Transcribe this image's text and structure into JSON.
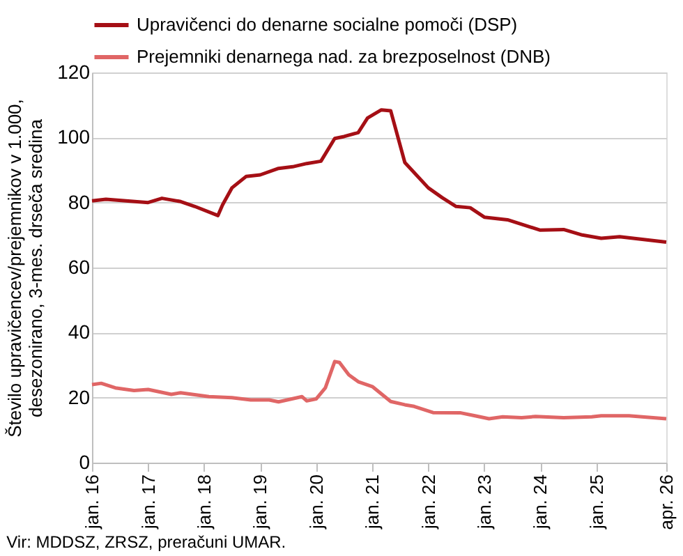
{
  "chart_data": {
    "type": "line",
    "ylabel": "Število upravičencev/prejemnikov v 1.000,\ndesezonirano, 3-mes. drseča sredina",
    "annotations": [
      "Vir: MDDSZ, ZRSZ, preračuni UMAR."
    ],
    "xlim": [
      "2016-01",
      "2026-04"
    ],
    "xticks": [
      {
        "value": "2016-01",
        "label": "jan. 16"
      },
      {
        "value": "2017-01",
        "label": "jan. 17"
      },
      {
        "value": "2018-01",
        "label": "jan. 18"
      },
      {
        "value": "2019-01",
        "label": "jan. 19"
      },
      {
        "value": "2020-01",
        "label": "jan. 20"
      },
      {
        "value": "2021-01",
        "label": "jan. 21"
      },
      {
        "value": "2022-01",
        "label": "jan. 22"
      },
      {
        "value": "2023-01",
        "label": "jan. 23"
      },
      {
        "value": "2024-01",
        "label": "jan. 24"
      },
      {
        "value": "2025-01",
        "label": "jan. 25"
      },
      {
        "value": "2026-04",
        "label": "apr. 26"
      }
    ],
    "ylim": [
      0,
      120
    ],
    "yticks": [
      0,
      20,
      40,
      60,
      80,
      100,
      120
    ],
    "grid": "y",
    "legend": "top",
    "line_style": "solid",
    "series": [
      {
        "name": "Upravičenci do denarne socialne pomoči (DSP)",
        "color": "#a50f15",
        "x": [
          "2016-01",
          "2016-04",
          "2017-01",
          "2017-04",
          "2017-08",
          "2017-11",
          "2018-04",
          "2018-05",
          "2018-07",
          "2018-10",
          "2019-01",
          "2019-05",
          "2019-08",
          "2019-11",
          "2020-02",
          "2020-05",
          "2020-07",
          "2020-10",
          "2020-12",
          "2021-03",
          "2021-05",
          "2021-08",
          "2022-01",
          "2022-04",
          "2022-07",
          "2022-10",
          "2023-01",
          "2023-06",
          "2024-01",
          "2024-06",
          "2024-10",
          "2025-02",
          "2025-06",
          "2026-04"
        ],
        "values": [
          80.5,
          81,
          80,
          81.3,
          80.3,
          78.8,
          76,
          79.3,
          84.5,
          88,
          88.5,
          90.5,
          91,
          92,
          92.7,
          99.7,
          100.3,
          101.5,
          106,
          108.5,
          108.2,
          92.3,
          84.5,
          81.5,
          78.8,
          78.4,
          75.5,
          74.7,
          71.5,
          71.7,
          70,
          69,
          69.5,
          67.8
        ]
      },
      {
        "name": "Prejemniki denarnega nad. za brezposelnost (DNB)",
        "color": "#e06666",
        "x": [
          "2016-01",
          "2016-03",
          "2016-06",
          "2016-10",
          "2017-01",
          "2017-06",
          "2017-08",
          "2018-02",
          "2018-07",
          "2018-11",
          "2019-03",
          "2019-05",
          "2019-10",
          "2019-11",
          "2020-01",
          "2020-03",
          "2020-05",
          "2020-06",
          "2020-08",
          "2020-10",
          "2021-01",
          "2021-05",
          "2021-08",
          "2021-10",
          "2022-02",
          "2022-08",
          "2022-11",
          "2023-02",
          "2023-05",
          "2023-09",
          "2023-12",
          "2024-06",
          "2024-12",
          "2025-02",
          "2025-08",
          "2026-04"
        ],
        "values": [
          24,
          24.4,
          23,
          22.2,
          22.5,
          21,
          21.5,
          20.3,
          20,
          19.3,
          19.3,
          18.7,
          20.3,
          19,
          19.6,
          23,
          31.1,
          30.8,
          27,
          24.9,
          23.4,
          18.8,
          17.8,
          17.3,
          15.4,
          15.3,
          14.4,
          13.5,
          14.1,
          13.8,
          14.2,
          13.8,
          14.1,
          14.4,
          14.4,
          13.5
        ]
      }
    ]
  }
}
